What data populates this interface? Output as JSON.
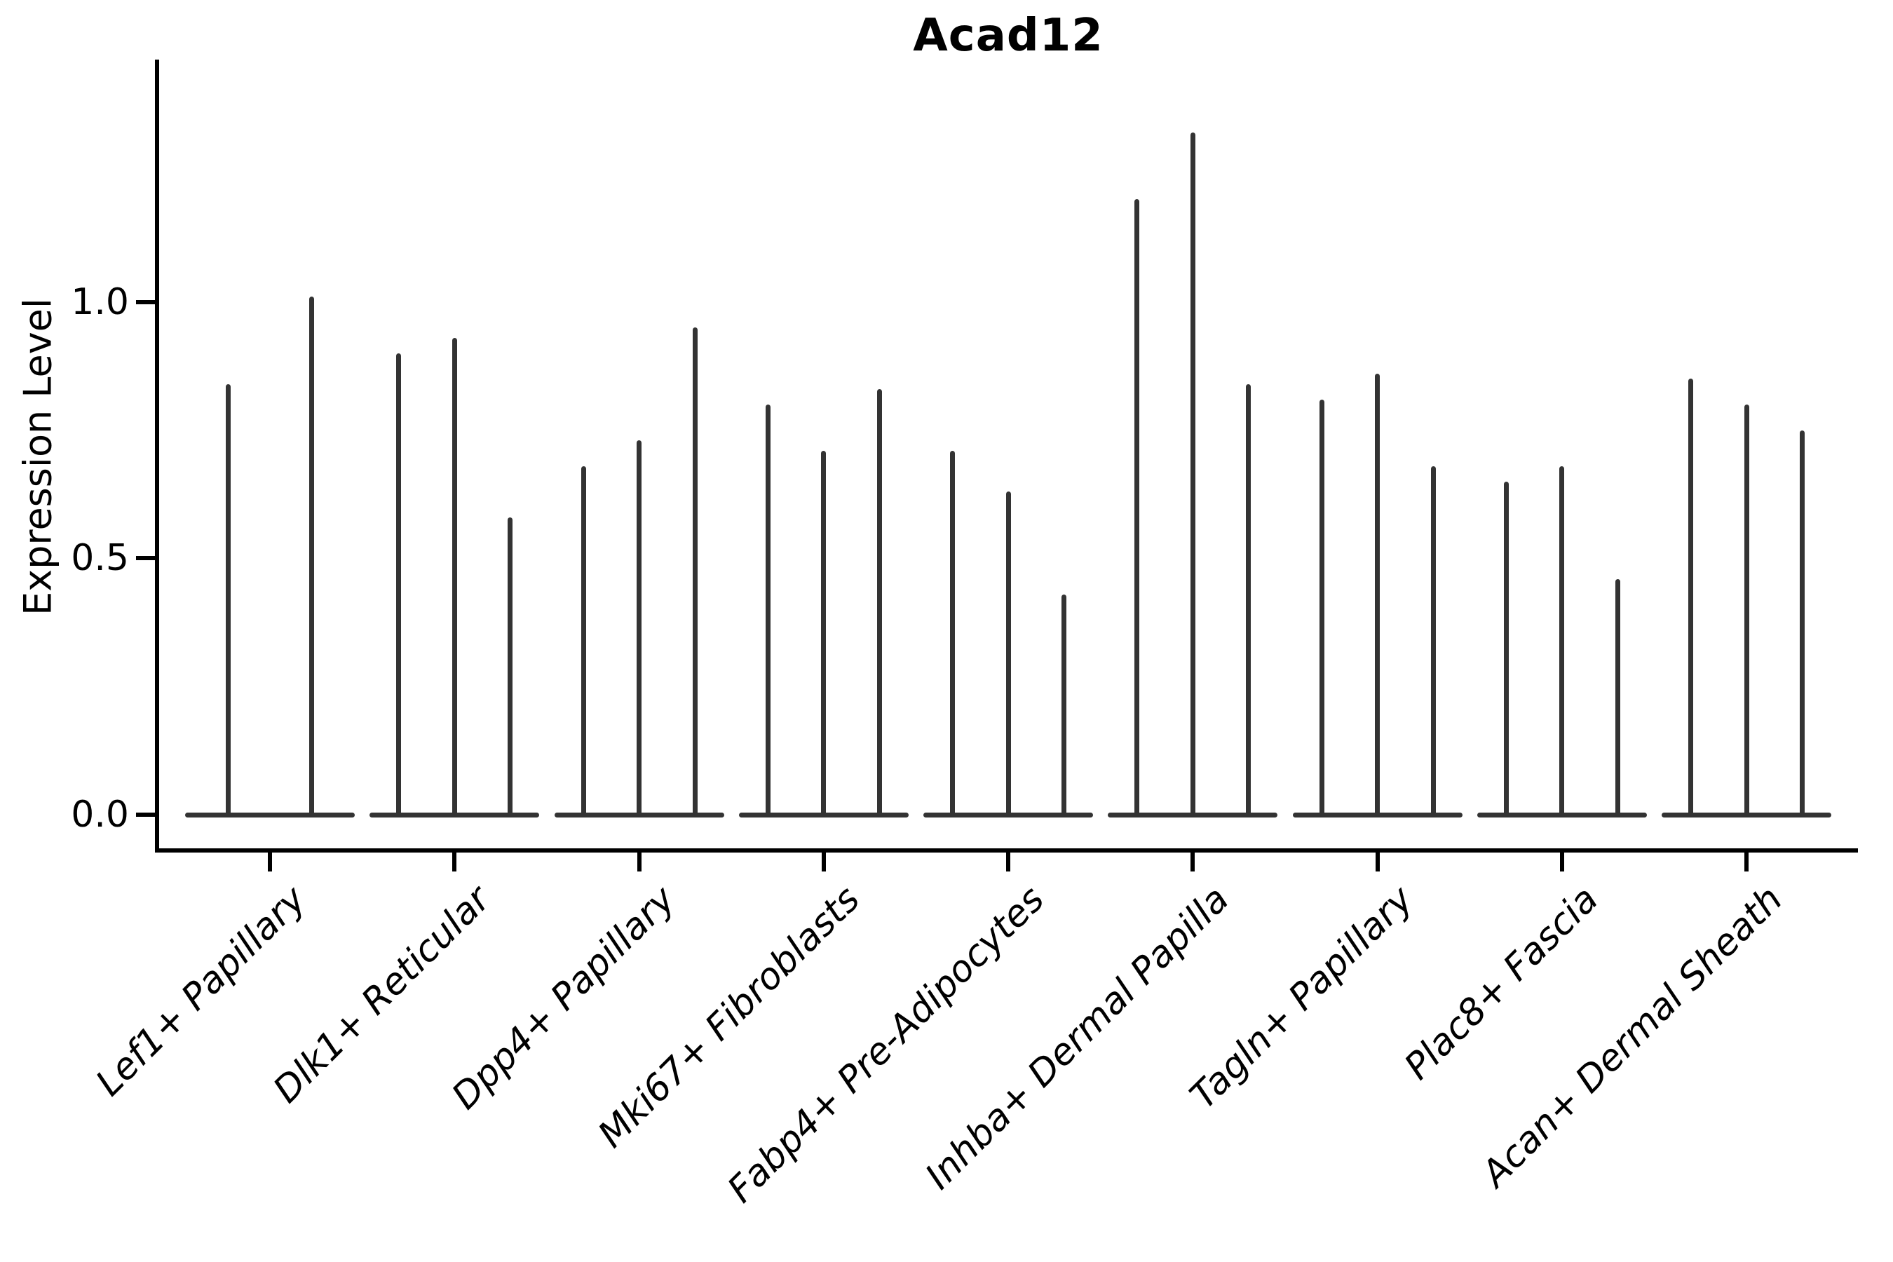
{
  "style": {
    "ink": "#333333",
    "text_color": "#000000",
    "background": "#ffffff"
  },
  "chart_data": {
    "type": "violin",
    "title": "Acad12",
    "xlabel": "",
    "ylabel": "Expression Level",
    "ylim": [
      -0.07,
      1.47
    ],
    "grid": false,
    "legend": "none",
    "yticks": [
      0.0,
      0.5,
      1.0
    ],
    "ytick_labels": [
      "0.0",
      "0.5",
      "1.0"
    ],
    "violin_style": "needle-thin violins: flat body at 0 with a vertical spike up to the max expression value",
    "categories": [
      "Lef1+ Papillary",
      "Dlk1+ Reticular",
      "Dpp4+ Papillary",
      "Mki67+ Fibroblasts",
      "Fabp4+ Pre-Adipocytes",
      "Inhba+ Dermal Papilla",
      "Tagln+ Papillary",
      "Plac8+ Fascia",
      "Acan+ Dermal Sheath"
    ],
    "groups": [
      {
        "label": "Lef1+ Papillary",
        "violin_max": [
          0.84,
          1.01
        ]
      },
      {
        "label": "Dlk1+ Reticular",
        "violin_max": [
          0.9,
          0.93,
          0.58
        ]
      },
      {
        "label": "Dpp4+ Papillary",
        "violin_max": [
          0.68,
          0.73,
          0.95
        ]
      },
      {
        "label": "Mki67+ Fibroblasts",
        "violin_max": [
          0.8,
          0.71,
          0.83
        ]
      },
      {
        "label": "Fabp4+ Pre-Adipocytes",
        "violin_max": [
          0.71,
          0.63,
          0.43
        ]
      },
      {
        "label": "Inhba+ Dermal Papilla",
        "violin_max": [
          1.2,
          1.33,
          0.84
        ]
      },
      {
        "label": "Tagln+ Papillary",
        "violin_max": [
          0.81,
          0.86,
          0.68
        ]
      },
      {
        "label": "Plac8+ Fascia",
        "violin_max": [
          0.65,
          0.68,
          0.46
        ]
      },
      {
        "label": "Acan+ Dermal Sheath",
        "violin_max": [
          0.85,
          0.8,
          0.75
        ]
      }
    ]
  }
}
